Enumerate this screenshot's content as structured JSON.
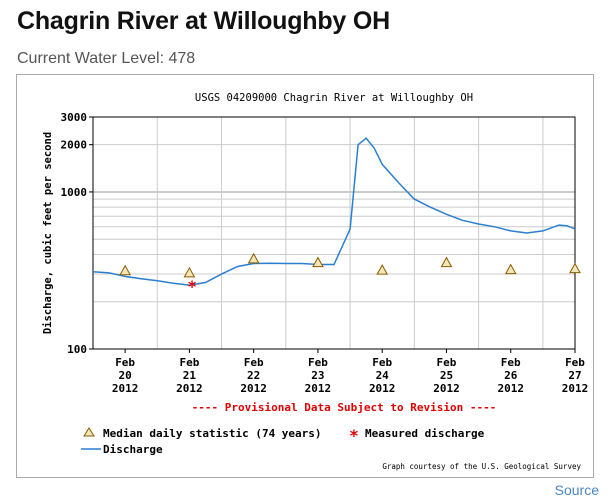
{
  "page": {
    "title": "Chagrin River at Willoughby OH",
    "current_level_label": "Current Water Level: 478",
    "source_link": "Source"
  },
  "chart_data": {
    "type": "line",
    "title": "USGS 04209000 Chagrin River at Willoughby OH",
    "ylabel": "Discharge, cubic feet per second",
    "xlabel": "",
    "y_scale": "log",
    "ylim": [
      100,
      3000
    ],
    "y_ticks": [
      100,
      1000,
      2000,
      3000
    ],
    "xlim": [
      "2012-02-20 00:00",
      "2012-02-27 12:00"
    ],
    "x_ticks": [
      {
        "date": "2012-02-20 12:00",
        "label": [
          "Feb",
          "20",
          "2012"
        ]
      },
      {
        "date": "2012-02-21 12:00",
        "label": [
          "Feb",
          "21",
          "2012"
        ]
      },
      {
        "date": "2012-02-22 12:00",
        "label": [
          "Feb",
          "22",
          "2012"
        ]
      },
      {
        "date": "2012-02-23 12:00",
        "label": [
          "Feb",
          "23",
          "2012"
        ]
      },
      {
        "date": "2012-02-24 12:00",
        "label": [
          "Feb",
          "24",
          "2012"
        ]
      },
      {
        "date": "2012-02-25 12:00",
        "label": [
          "Feb",
          "25",
          "2012"
        ]
      },
      {
        "date": "2012-02-26 12:00",
        "label": [
          "Feb",
          "26",
          "2012"
        ]
      },
      {
        "date": "2012-02-27 12:00",
        "label": [
          "Feb",
          "27",
          "2012"
        ]
      }
    ],
    "grid": true,
    "provisional_note": "---- Provisional Data Subject to Revision ----",
    "credit": "Graph courtesy of the U.S. Geological Survey",
    "legend": [
      {
        "label": "Median daily statistic (74 years)",
        "marker": "triangle",
        "color": "#8b5a00"
      },
      {
        "label": "Measured discharge",
        "marker": "asterisk",
        "color": "#e00000"
      },
      {
        "label": "Discharge",
        "marker": "line",
        "color": "#2a7fd0"
      }
    ],
    "series": [
      {
        "name": "Discharge",
        "color": "#2a7fd0",
        "points": [
          [
            "2012-02-20 00:00",
            310
          ],
          [
            "2012-02-20 06:00",
            305
          ],
          [
            "2012-02-20 12:00",
            290
          ],
          [
            "2012-02-20 18:00",
            280
          ],
          [
            "2012-02-21 00:00",
            272
          ],
          [
            "2012-02-21 06:00",
            262
          ],
          [
            "2012-02-21 12:00",
            255
          ],
          [
            "2012-02-21 18:00",
            265
          ],
          [
            "2012-02-22 00:00",
            300
          ],
          [
            "2012-02-22 06:00",
            335
          ],
          [
            "2012-02-22 12:00",
            350
          ],
          [
            "2012-02-22 18:00",
            352
          ],
          [
            "2012-02-23 00:00",
            350
          ],
          [
            "2012-02-23 06:00",
            350
          ],
          [
            "2012-02-23 12:00",
            345
          ],
          [
            "2012-02-23 18:00",
            345
          ],
          [
            "2012-02-24 00:00",
            580
          ],
          [
            "2012-02-24 03:00",
            2000
          ],
          [
            "2012-02-24 06:00",
            2200
          ],
          [
            "2012-02-24 09:00",
            1900
          ],
          [
            "2012-02-24 12:00",
            1500
          ],
          [
            "2012-02-24 18:00",
            1150
          ],
          [
            "2012-02-25 00:00",
            900
          ],
          [
            "2012-02-25 06:00",
            800
          ],
          [
            "2012-02-25 12:00",
            720
          ],
          [
            "2012-02-25 18:00",
            660
          ],
          [
            "2012-02-26 00:00",
            625
          ],
          [
            "2012-02-26 06:00",
            600
          ],
          [
            "2012-02-26 12:00",
            565
          ],
          [
            "2012-02-26 18:00",
            548
          ],
          [
            "2012-02-27 00:00",
            565
          ],
          [
            "2012-02-27 06:00",
            615
          ],
          [
            "2012-02-27 09:00",
            610
          ],
          [
            "2012-02-27 12:00",
            582
          ]
        ]
      },
      {
        "name": "Median daily statistic (74 years)",
        "marker": "triangle",
        "color": "#8b5a00",
        "points": [
          [
            "2012-02-20 12:00",
            315
          ],
          [
            "2012-02-21 12:00",
            305
          ],
          [
            "2012-02-22 12:00",
            375
          ],
          [
            "2012-02-23 12:00",
            355
          ],
          [
            "2012-02-24 12:00",
            318
          ],
          [
            "2012-02-25 12:00",
            355
          ],
          [
            "2012-02-26 12:00",
            320
          ],
          [
            "2012-02-27 12:00",
            325
          ]
        ]
      },
      {
        "name": "Measured discharge",
        "marker": "asterisk",
        "color": "#e00000",
        "points": [
          [
            "2012-02-21 13:00",
            252
          ]
        ]
      }
    ]
  }
}
